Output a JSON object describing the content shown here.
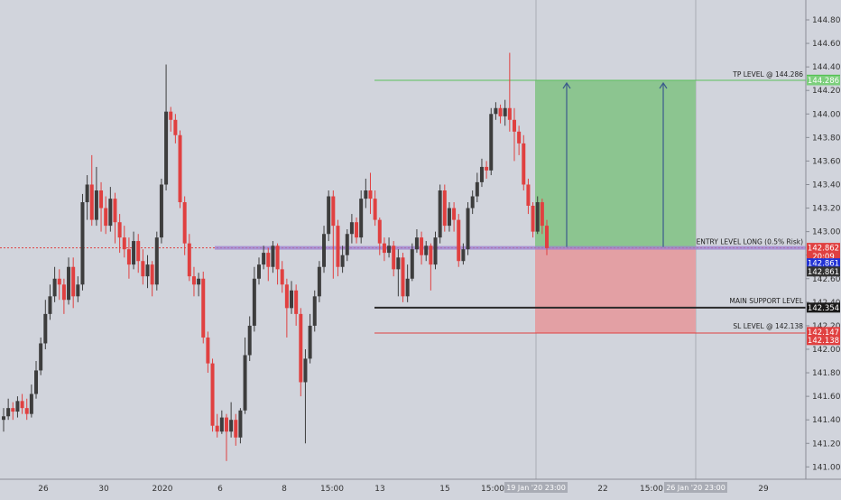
{
  "chart_data": {
    "type": "candlestick",
    "y_ticks": [
      "144.800",
      "144.600",
      "144.400",
      "144.200",
      "144.000",
      "143.800",
      "143.600",
      "143.400",
      "143.200",
      "143.000",
      "142.800",
      "142.600",
      "142.400",
      "142.200",
      "142.000",
      "141.800",
      "141.600",
      "141.400",
      "141.200",
      "141.000"
    ],
    "x_ticks": [
      "26",
      "30",
      "2020",
      "6",
      "8",
      "15:00",
      "13",
      "15",
      "15:00",
      "20",
      "22",
      "15:00",
      "27",
      "29"
    ],
    "ylim": [
      140.93,
      144.98
    ],
    "colors": {
      "background": "#d1d4dc",
      "up_candle": "#3d3d3d",
      "down_candle": "#e04040",
      "target_zone": "#8cc590",
      "stop_zone": "#e3a0a4",
      "tp_line": "#5bbf5b",
      "entry_line": "#9c7fd1",
      "support_line": "#2a2a2a",
      "sl_line": "#e04040"
    },
    "levels": [
      {
        "label": "TP LEVEL @ 144.286",
        "price": 144.286
      },
      {
        "label": "ENTRY LEVEL LONG (0.5% Risk)",
        "price": 142.862
      },
      {
        "label": "MAIN SUPPORT LEVEL",
        "price": 142.354
      },
      {
        "label": "SL LEVEL @ 142.138",
        "price": 142.138
      }
    ],
    "price_tags": [
      {
        "text": "144.291",
        "price": 144.291,
        "color": "#2bb52b"
      },
      {
        "text": "144.286",
        "price": 144.286,
        "color": "#7ccf7c"
      },
      {
        "text": "142.862",
        "price": 142.862,
        "color": "#e04040"
      },
      {
        "text": "20:09",
        "price": 142.79,
        "color": "#e04040"
      },
      {
        "text": "142.861",
        "price": 142.731,
        "color": "#2233d6"
      },
      {
        "text": "142.861",
        "price": 142.661,
        "color": "#333333"
      },
      {
        "text": "142.354",
        "price": 142.354,
        "color": "#1a1a1a"
      },
      {
        "text": "142.147",
        "price": 142.147,
        "color": "#e04040"
      },
      {
        "text": "142.138",
        "price": 142.078,
        "color": "#e04040"
      }
    ],
    "time_tags": [
      "19 Jan '20  23:00",
      "26 Jan '20  23:00"
    ],
    "candles": [
      [
        141.4,
        141.43,
        141.3,
        141.5
      ],
      [
        141.43,
        141.5,
        141.4,
        141.58
      ],
      [
        141.5,
        141.47,
        141.4,
        141.55
      ],
      [
        141.47,
        141.56,
        141.42,
        141.6
      ],
      [
        141.56,
        141.5,
        141.45,
        141.62
      ],
      [
        141.5,
        141.45,
        141.4,
        141.58
      ],
      [
        141.45,
        141.62,
        141.42,
        141.7
      ],
      [
        141.62,
        141.82,
        141.58,
        141.9
      ],
      [
        141.82,
        142.05,
        141.78,
        142.1
      ],
      [
        142.05,
        142.3,
        142.0,
        142.42
      ],
      [
        142.3,
        142.45,
        142.25,
        142.55
      ],
      [
        142.45,
        142.6,
        142.4,
        142.7
      ],
      [
        142.6,
        142.55,
        142.42,
        142.68
      ],
      [
        142.55,
        142.42,
        142.3,
        142.6
      ],
      [
        142.42,
        142.7,
        142.38,
        142.78
      ],
      [
        142.7,
        142.45,
        142.35,
        142.78
      ],
      [
        142.45,
        142.55,
        142.4,
        142.62
      ],
      [
        142.55,
        143.25,
        142.5,
        143.32
      ],
      [
        143.25,
        143.4,
        143.1,
        143.48
      ],
      [
        143.4,
        143.1,
        143.05,
        143.65
      ],
      [
        143.1,
        143.35,
        143.05,
        143.55
      ],
      [
        143.35,
        143.2,
        143.0,
        143.42
      ],
      [
        143.2,
        143.05,
        142.98,
        143.3
      ],
      [
        143.05,
        143.28,
        143.0,
        143.38
      ],
      [
        143.28,
        143.08,
        142.9,
        143.33
      ],
      [
        143.08,
        142.95,
        142.82,
        143.15
      ],
      [
        142.95,
        142.85,
        142.78,
        143.05
      ],
      [
        142.85,
        142.72,
        142.6,
        142.95
      ],
      [
        142.72,
        142.92,
        142.68,
        143.0
      ],
      [
        142.92,
        142.75,
        142.65,
        142.98
      ],
      [
        142.75,
        142.62,
        142.55,
        142.85
      ],
      [
        142.62,
        142.72,
        142.52,
        142.8
      ],
      [
        142.72,
        142.55,
        142.45,
        142.75
      ],
      [
        142.55,
        142.95,
        142.5,
        143.0
      ],
      [
        142.95,
        143.4,
        142.9,
        143.45
      ],
      [
        143.4,
        144.02,
        143.35,
        144.42
      ],
      [
        144.02,
        143.95,
        143.85,
        144.06
      ],
      [
        143.95,
        143.82,
        143.75,
        144.0
      ],
      [
        143.82,
        143.25,
        143.2,
        143.86
      ],
      [
        143.25,
        142.9,
        142.8,
        143.3
      ],
      [
        142.9,
        142.62,
        142.58,
        142.98
      ],
      [
        142.62,
        142.55,
        142.45,
        142.7
      ],
      [
        142.55,
        142.6,
        142.45,
        142.65
      ],
      [
        142.6,
        142.1,
        142.05,
        142.66
      ],
      [
        142.1,
        141.88,
        141.8,
        142.15
      ],
      [
        141.88,
        141.35,
        141.3,
        141.92
      ],
      [
        141.35,
        141.3,
        141.25,
        141.45
      ],
      [
        141.3,
        141.42,
        141.28,
        141.48
      ],
      [
        141.42,
        141.3,
        141.05,
        141.45
      ],
      [
        141.3,
        141.4,
        141.25,
        141.55
      ],
      [
        141.4,
        141.25,
        141.18,
        141.45
      ],
      [
        141.25,
        141.48,
        141.2,
        141.5
      ],
      [
        141.48,
        141.95,
        141.45,
        142.1
      ],
      [
        141.95,
        142.2,
        141.9,
        142.28
      ],
      [
        142.2,
        142.6,
        142.15,
        142.7
      ],
      [
        142.6,
        142.72,
        142.55,
        142.78
      ],
      [
        142.72,
        142.82,
        142.68,
        142.88
      ],
      [
        142.82,
        142.7,
        142.58,
        142.86
      ],
      [
        142.7,
        142.88,
        142.65,
        142.92
      ],
      [
        142.88,
        142.68,
        142.55,
        142.9
      ],
      [
        142.68,
        142.55,
        142.48,
        142.75
      ],
      [
        142.55,
        142.35,
        142.1,
        142.6
      ],
      [
        142.35,
        142.5,
        142.3,
        142.58
      ],
      [
        142.5,
        142.3,
        142.2,
        142.55
      ],
      [
        142.3,
        141.72,
        141.6,
        142.35
      ],
      [
        141.72,
        141.92,
        141.2,
        142.0
      ],
      [
        141.92,
        142.2,
        141.88,
        142.3
      ],
      [
        142.2,
        142.45,
        142.15,
        142.5
      ],
      [
        142.45,
        142.7,
        142.4,
        142.75
      ],
      [
        142.7,
        142.98,
        142.65,
        143.05
      ],
      [
        142.98,
        143.3,
        142.92,
        143.35
      ],
      [
        143.3,
        143.05,
        142.6,
        143.35
      ],
      [
        143.05,
        142.7,
        142.62,
        143.1
      ],
      [
        142.7,
        142.8,
        142.65,
        142.88
      ],
      [
        142.8,
        142.98,
        142.75,
        143.02
      ],
      [
        142.98,
        143.08,
        142.9,
        143.15
      ],
      [
        143.08,
        142.95,
        142.9,
        143.12
      ],
      [
        142.95,
        143.28,
        142.9,
        143.35
      ],
      [
        143.28,
        143.35,
        143.2,
        143.45
      ],
      [
        143.35,
        143.28,
        143.15,
        143.5
      ],
      [
        143.28,
        143.1,
        143.05,
        143.35
      ],
      [
        143.1,
        142.9,
        142.8,
        143.12
      ],
      [
        142.9,
        142.82,
        142.75,
        142.95
      ],
      [
        142.82,
        142.88,
        142.78,
        142.95
      ],
      [
        142.88,
        142.68,
        142.62,
        142.92
      ],
      [
        142.68,
        142.78,
        142.45,
        142.85
      ],
      [
        142.78,
        142.45,
        142.4,
        142.82
      ],
      [
        142.45,
        142.6,
        142.4,
        142.72
      ],
      [
        142.6,
        142.85,
        142.58,
        142.9
      ],
      [
        142.85,
        142.95,
        142.82,
        143.02
      ],
      [
        142.95,
        142.8,
        142.72,
        143.0
      ],
      [
        142.8,
        142.88,
        142.75,
        142.92
      ],
      [
        142.88,
        142.72,
        142.5,
        142.9
      ],
      [
        142.72,
        142.95,
        142.68,
        143.0
      ],
      [
        142.95,
        143.35,
        142.9,
        143.4
      ],
      [
        143.35,
        143.05,
        143.0,
        143.4
      ],
      [
        143.05,
        143.2,
        143.0,
        143.25
      ],
      [
        143.2,
        143.1,
        143.0,
        143.25
      ],
      [
        143.1,
        142.75,
        142.7,
        143.15
      ],
      [
        142.75,
        142.85,
        142.72,
        142.9
      ],
      [
        142.85,
        143.2,
        142.8,
        143.25
      ],
      [
        143.2,
        143.3,
        143.15,
        143.35
      ],
      [
        143.3,
        143.42,
        143.25,
        143.5
      ],
      [
        143.42,
        143.55,
        143.38,
        143.62
      ],
      [
        143.55,
        143.52,
        143.45,
        143.6
      ],
      [
        143.52,
        144.0,
        143.48,
        144.05
      ],
      [
        144.0,
        144.05,
        143.95,
        144.1
      ],
      [
        144.05,
        143.98,
        143.92,
        144.08
      ],
      [
        143.98,
        144.05,
        143.9,
        144.12
      ],
      [
        144.05,
        143.95,
        143.85,
        144.52
      ],
      [
        143.95,
        143.85,
        143.6,
        144.05
      ],
      [
        143.85,
        143.75,
        143.65,
        143.9
      ],
      [
        143.75,
        143.4,
        143.35,
        143.82
      ],
      [
        143.4,
        143.22,
        143.15,
        143.45
      ],
      [
        143.22,
        143.0,
        142.95,
        143.25
      ],
      [
        143.0,
        143.25,
        142.98,
        143.3
      ],
      [
        143.25,
        143.05,
        142.98,
        143.28
      ],
      [
        143.05,
        142.86,
        142.8,
        143.1
      ]
    ]
  }
}
